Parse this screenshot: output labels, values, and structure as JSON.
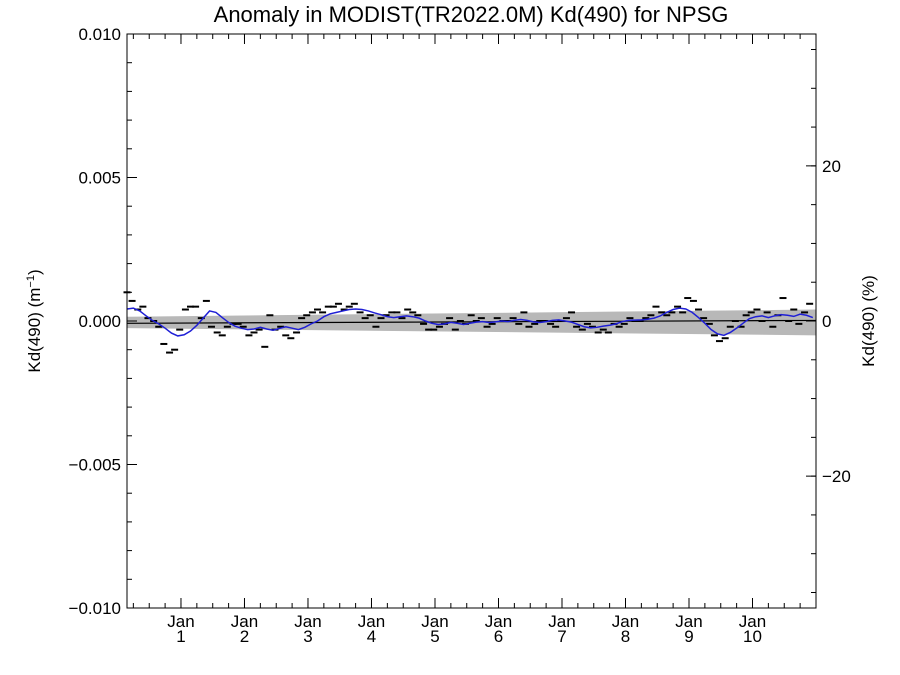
{
  "chart_data": {
    "type": "line",
    "title": "Anomaly in MODIST(TR2022.0M) Kd(490) for NPSG",
    "ylabel_main": "Kd(490) (m",
    "ylabel_sup": "−1",
    "ylabel_close": ")",
    "ylabel_right": "Kd(490) (%)",
    "xlim": [
      0,
      10.85
    ],
    "ylim": [
      -0.01,
      0.01
    ],
    "yticks": [
      {
        "value": 0.01,
        "label": "0.010"
      },
      {
        "value": 0.005,
        "label": "0.005"
      },
      {
        "value": 0.0,
        "label": "0.000"
      },
      {
        "value": -0.005,
        "label": "−0.005"
      },
      {
        "value": -0.01,
        "label": "−0.010"
      }
    ],
    "yticks_right": [
      {
        "value": 20,
        "label": "20"
      },
      {
        "value": 0,
        "label": "0"
      },
      {
        "value": -20,
        "label": "−20"
      }
    ],
    "right_scale_percent_per_unit": 3700,
    "xticks": [
      {
        "value": 0.85,
        "month": "Jan",
        "year": "1"
      },
      {
        "value": 1.85,
        "month": "Jan",
        "year": "2"
      },
      {
        "value": 2.85,
        "month": "Jan",
        "year": "3"
      },
      {
        "value": 3.85,
        "month": "Jan",
        "year": "4"
      },
      {
        "value": 4.85,
        "month": "Jan",
        "year": "5"
      },
      {
        "value": 5.85,
        "month": "Jan",
        "year": "6"
      },
      {
        "value": 6.85,
        "month": "Jan",
        "year": "7"
      },
      {
        "value": 7.85,
        "month": "Jan",
        "year": "8"
      },
      {
        "value": 8.85,
        "month": "Jan",
        "year": "9"
      },
      {
        "value": 9.85,
        "month": "Jan",
        "year": "10"
      }
    ],
    "series": [
      {
        "kind": "monthly_anomaly",
        "color": "#000000",
        "x": [
          0.0,
          0.08,
          0.17,
          0.25,
          0.33,
          0.42,
          0.5,
          0.58,
          0.67,
          0.75,
          0.83,
          0.92,
          1.0,
          1.08,
          1.17,
          1.25,
          1.33,
          1.42,
          1.5,
          1.58,
          1.67,
          1.75,
          1.83,
          1.92,
          2.0,
          2.08,
          2.17,
          2.25,
          2.33,
          2.42,
          2.5,
          2.58,
          2.67,
          2.75,
          2.83,
          2.92,
          3.0,
          3.08,
          3.17,
          3.25,
          3.33,
          3.42,
          3.5,
          3.58,
          3.67,
          3.75,
          3.83,
          3.92,
          4.0,
          4.08,
          4.17,
          4.25,
          4.33,
          4.42,
          4.5,
          4.58,
          4.67,
          4.75,
          4.83,
          4.92,
          5.0,
          5.08,
          5.17,
          5.25,
          5.33,
          5.42,
          5.5,
          5.58,
          5.67,
          5.75,
          5.83,
          5.92,
          6.0,
          6.08,
          6.17,
          6.25,
          6.33,
          6.42,
          6.5,
          6.58,
          6.67,
          6.75,
          6.83,
          6.92,
          7.0,
          7.08,
          7.17,
          7.25,
          7.33,
          7.42,
          7.5,
          7.58,
          7.67,
          7.75,
          7.83,
          7.92,
          8.0,
          8.08,
          8.17,
          8.25,
          8.33,
          8.42,
          8.5,
          8.58,
          8.67,
          8.75,
          8.83,
          8.92,
          9.0,
          9.08,
          9.17,
          9.25,
          9.33,
          9.42,
          9.5,
          9.58,
          9.67,
          9.75,
          9.83,
          9.92,
          10.0,
          10.08,
          10.17,
          10.25,
          10.33,
          10.42,
          10.5,
          10.58,
          10.67,
          10.75
        ],
        "y": [
          0.001,
          0.0007,
          0.0004,
          0.0005,
          0.0001,
          0.0,
          -0.0002,
          -0.0008,
          -0.0011,
          -0.001,
          -0.0003,
          0.0004,
          0.0005,
          0.0005,
          0.0001,
          0.0007,
          -0.0002,
          -0.0004,
          -0.0005,
          -0.0002,
          -0.0001,
          -0.0001,
          -0.0002,
          -0.0005,
          -0.0004,
          -0.0003,
          -0.0009,
          0.0002,
          -0.0003,
          -0.0002,
          -0.0005,
          -0.0006,
          -0.0004,
          0.0001,
          0.0002,
          0.0003,
          0.0004,
          0.0003,
          0.0005,
          0.0005,
          0.0006,
          0.0004,
          0.0005,
          0.0006,
          0.0003,
          0.0001,
          0.0002,
          -0.0002,
          0.0001,
          0.0002,
          0.0003,
          0.0003,
          0.0001,
          0.0004,
          0.0003,
          0.0002,
          -0.0001,
          -0.0003,
          -0.0003,
          -0.0002,
          -0.0001,
          0.0001,
          -0.0003,
          0.0,
          -0.0001,
          0.0002,
          0.0,
          0.0001,
          -0.0002,
          -0.0001,
          0.0001,
          0.0,
          0.0,
          0.0001,
          -0.0001,
          0.0003,
          -0.0002,
          -0.0001,
          0.0,
          0.0,
          -0.0001,
          -0.0002,
          0.0,
          0.0001,
          0.0003,
          -0.0002,
          -0.0003,
          -0.0001,
          -0.0002,
          -0.0004,
          -0.0003,
          -0.0004,
          -0.0001,
          -0.0002,
          -0.0001,
          0.0001,
          0.0,
          0.0,
          0.0001,
          0.0002,
          0.0005,
          0.0003,
          0.0002,
          0.0003,
          0.0005,
          0.0003,
          0.0008,
          0.0007,
          0.0004,
          0.0001,
          -0.0001,
          -0.0005,
          -0.0007,
          -0.0006,
          -0.0002,
          0.0,
          -0.0002,
          0.0002,
          0.0003,
          0.0004,
          0.0,
          0.0003,
          -0.0002,
          0.0002,
          0.0008,
          0.0,
          0.0004,
          -0.0001,
          0.0003,
          0.0006
        ]
      },
      {
        "kind": "smoothed",
        "color": "#1f1fd6",
        "x": [
          0.0,
          0.1,
          0.2,
          0.3,
          0.4,
          0.5,
          0.6,
          0.7,
          0.8,
          0.9,
          1.0,
          1.1,
          1.2,
          1.3,
          1.4,
          1.5,
          1.6,
          1.7,
          1.8,
          1.9,
          2.0,
          2.1,
          2.2,
          2.3,
          2.4,
          2.5,
          2.6,
          2.7,
          2.8,
          2.9,
          3.0,
          3.1,
          3.2,
          3.3,
          3.4,
          3.5,
          3.6,
          3.7,
          3.8,
          3.9,
          4.0,
          4.1,
          4.2,
          4.3,
          4.4,
          4.5,
          4.6,
          4.7,
          4.8,
          4.9,
          5.0,
          5.1,
          5.2,
          5.3,
          5.4,
          5.5,
          5.6,
          5.7,
          5.8,
          5.9,
          6.0,
          6.1,
          6.2,
          6.3,
          6.4,
          6.5,
          6.6,
          6.7,
          6.8,
          6.9,
          7.0,
          7.1,
          7.2,
          7.3,
          7.4,
          7.5,
          7.6,
          7.7,
          7.8,
          7.9,
          8.0,
          8.1,
          8.2,
          8.3,
          8.4,
          8.5,
          8.6,
          8.7,
          8.8,
          8.9,
          9.0,
          9.1,
          9.2,
          9.3,
          9.4,
          9.5,
          9.6,
          9.7,
          9.8,
          9.9,
          10.0,
          10.1,
          10.2,
          10.3,
          10.4,
          10.5,
          10.6,
          10.7,
          10.8
        ],
        "y": [
          0.00042,
          0.00045,
          0.00035,
          0.00018,
          2e-05,
          -0.0001,
          -0.00025,
          -0.00042,
          -0.00052,
          -0.00048,
          -0.00035,
          -0.00015,
          0.0001,
          0.00035,
          0.0003,
          0.00012,
          -5e-05,
          -0.00018,
          -0.00025,
          -0.0003,
          -0.00028,
          -0.00022,
          -0.00028,
          -0.00032,
          -0.00026,
          -0.0002,
          -0.00025,
          -0.0003,
          -0.00022,
          -0.0001,
          0.0,
          0.00015,
          0.00025,
          0.0003,
          0.00035,
          0.0004,
          0.00042,
          0.0004,
          0.00035,
          0.00028,
          0.00022,
          0.00015,
          0.00012,
          0.00015,
          0.00018,
          0.00015,
          0.0001,
          0.0,
          -8e-05,
          -0.00012,
          -0.0001,
          -5e-05,
          -8e-05,
          -0.00012,
          -8e-05,
          -4e-05,
          -2e-05,
          -5e-05,
          -3e-05,
          0.0,
          -2e-05,
          2e-05,
          5e-05,
          2e-05,
          -3e-05,
          -5e-05,
          -2e-05,
          2e-05,
          4e-05,
          0.0,
          -4e-05,
          -0.00012,
          -0.0002,
          -0.00024,
          -0.00022,
          -0.00018,
          -0.00015,
          -0.0001,
          -2e-05,
          2e-05,
          3e-05,
          4e-05,
          6e-05,
          0.0001,
          0.00018,
          0.0003,
          0.0004,
          0.00045,
          0.00042,
          0.0003,
          0.00012,
          -8e-05,
          -0.0003,
          -0.00045,
          -0.0005,
          -0.0004,
          -0.00025,
          -8e-05,
          8e-05,
          0.00015,
          0.00018,
          0.00012,
          0.00018,
          0.00022,
          0.0002,
          0.00016,
          0.00024,
          0.0002,
          0.00012
        ]
      },
      {
        "kind": "trend",
        "color": "#000000",
        "x": [
          0.0,
          10.85
        ],
        "y": [
          -8e-05,
          2e-05
        ]
      },
      {
        "kind": "confidence_band",
        "color": "#b8b8b8",
        "x": [
          0.0,
          10.85
        ],
        "upper": [
          0.00015,
          0.0004
        ],
        "lower": [
          -0.00025,
          -0.0005
        ]
      }
    ]
  }
}
